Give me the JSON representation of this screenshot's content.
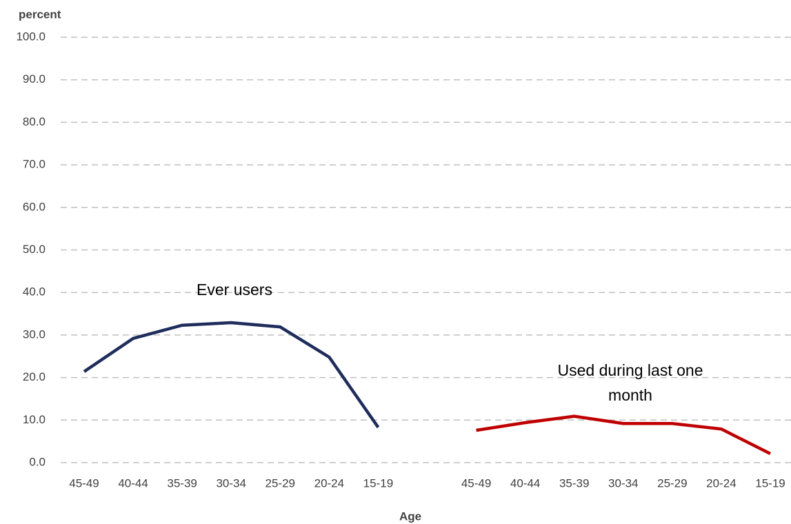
{
  "chart_data": {
    "type": "line",
    "y_label": "percent",
    "x_label": "Age",
    "categories": [
      "45-49",
      "40-44",
      "35-39",
      "30-34",
      "25-29",
      "20-24",
      "15-19",
      null,
      "45-49",
      "40-44",
      "35-39",
      "30-34",
      "25-29",
      "20-24",
      "15-19"
    ],
    "series": [
      {
        "name": "Ever users",
        "color": "#1f2d5c",
        "values": [
          21.4,
          29.2,
          32.3,
          32.9,
          31.9,
          24.8,
          8.3,
          null,
          null,
          null,
          null,
          null,
          null,
          null,
          null
        ]
      },
      {
        "name": "Used during last one month",
        "color": "#c00000",
        "values": [
          null,
          null,
          null,
          null,
          null,
          null,
          null,
          null,
          7.6,
          9.4,
          10.9,
          9.2,
          9.2,
          7.9,
          2.1
        ]
      }
    ],
    "ylim": [
      0,
      100
    ],
    "yticks": [
      {
        "value": 0,
        "label": "0.0"
      },
      {
        "value": 10,
        "label": "10.0"
      },
      {
        "value": 20,
        "label": "20.0"
      },
      {
        "value": 30,
        "label": "30.0"
      },
      {
        "value": 40,
        "label": "40.0"
      },
      {
        "value": 50,
        "label": "50.0"
      },
      {
        "value": 60,
        "label": "60.0"
      },
      {
        "value": 70,
        "label": "70.0"
      },
      {
        "value": 80,
        "label": "80.0"
      },
      {
        "value": 90,
        "label": "90.0"
      },
      {
        "value": 100,
        "label": "100.0"
      }
    ],
    "grid": true
  }
}
